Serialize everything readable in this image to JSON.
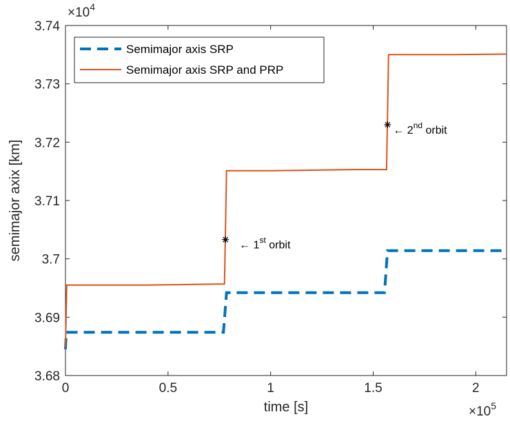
{
  "chart_data": {
    "type": "line",
    "xlabel": "time [s]",
    "ylabel": "semimajor axix [km]",
    "x_multiplier": "×10",
    "x_exponent": "5",
    "y_multiplier": "×10",
    "y_exponent": "4",
    "xlim": [
      0,
      215000
    ],
    "ylim": [
      36800,
      37400
    ],
    "x_ticks": [
      0,
      50000,
      100000,
      150000,
      200000
    ],
    "x_tick_labels": [
      "0",
      "0.5",
      "1",
      "1.5",
      "2"
    ],
    "y_ticks": [
      36800,
      36900,
      37000,
      37100,
      37200,
      37300,
      37400
    ],
    "y_tick_labels": [
      "3.68",
      "3.69",
      "3.7",
      "3.71",
      "3.72",
      "3.73",
      "3.74"
    ],
    "grid": false,
    "legend_position": "top-left",
    "series": [
      {
        "name": "Semimajor axis SRP",
        "style": "dashed",
        "color": "#0072BD",
        "points": [
          [
            0,
            36845
          ],
          [
            400,
            36874
          ],
          [
            77000,
            36874
          ],
          [
            78500,
            36942
          ],
          [
            155500,
            36942
          ],
          [
            157000,
            37014
          ],
          [
            215000,
            37014
          ]
        ]
      },
      {
        "name": "Semimajor axis SRP and PRP",
        "style": "solid",
        "color": "#D95319",
        "points": [
          [
            0,
            36848
          ],
          [
            600,
            36955
          ],
          [
            20000,
            36955
          ],
          [
            40000,
            36955
          ],
          [
            60000,
            36956
          ],
          [
            77500,
            36957
          ],
          [
            78500,
            37151
          ],
          [
            100000,
            37151
          ],
          [
            120000,
            37152
          ],
          [
            140000,
            37153
          ],
          [
            156500,
            37153
          ],
          [
            157500,
            37350
          ],
          [
            190000,
            37350
          ],
          [
            215000,
            37351
          ]
        ]
      }
    ],
    "annotations": [
      {
        "marker_x": 78000,
        "marker_y": 37033,
        "arrow": "←",
        "base": "1",
        "sup": "st",
        "suffix": "orbit"
      },
      {
        "marker_x": 157000,
        "marker_y": 37230,
        "arrow": "←",
        "base": "2",
        "sup": "nd",
        "suffix": "orbit"
      }
    ]
  }
}
